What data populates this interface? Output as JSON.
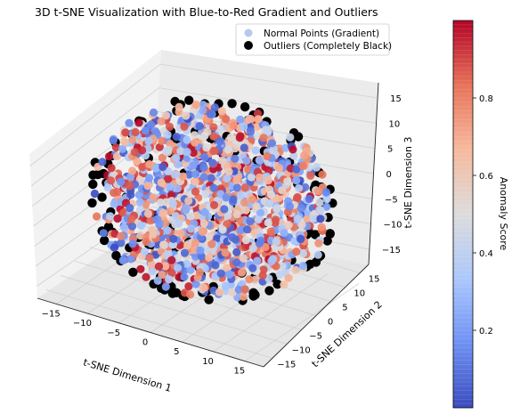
{
  "chart_data": {
    "type": "scatter",
    "subtype": "3d-scatter",
    "title": "3D t-SNE Visualization with Blue-to-Red Gradient and Outliers",
    "xlabel": "t-SNE Dimension 1",
    "ylabel": "t-SNE Dimension 2",
    "zlabel": "t-SNE Dimension 3",
    "xticks": [
      -15,
      -10,
      -5,
      0,
      5,
      10,
      15
    ],
    "yticks": [
      -15,
      -10,
      -5,
      0,
      5,
      10,
      15
    ],
    "zticks": [
      -15,
      -10,
      -5,
      0,
      5,
      10,
      15
    ],
    "xlim": [
      -18,
      18
    ],
    "ylim": [
      -18,
      18
    ],
    "zlim": [
      -18,
      18
    ],
    "grid": true,
    "legend_position": "top-right",
    "series": [
      {
        "name": "Normal Points (Gradient)",
        "marker_color": "#b7c9ee",
        "description_color": "gradient by anomaly score"
      },
      {
        "name": "Outliers (Completely Black)",
        "marker_color": "#000000"
      }
    ],
    "colorbar": {
      "label": "Anomaly Score",
      "ticks": [
        0.2,
        0.4,
        0.6,
        0.8
      ],
      "range": [
        0.0,
        1.0
      ],
      "colormap": "coolwarm",
      "colors": [
        "#3b4cc0",
        "#6f92f3",
        "#aac7fd",
        "#dddcdc",
        "#f7b89c",
        "#e7745b",
        "#b40426"
      ]
    },
    "point_cloud_radius": 17,
    "point_count": 1400
  }
}
